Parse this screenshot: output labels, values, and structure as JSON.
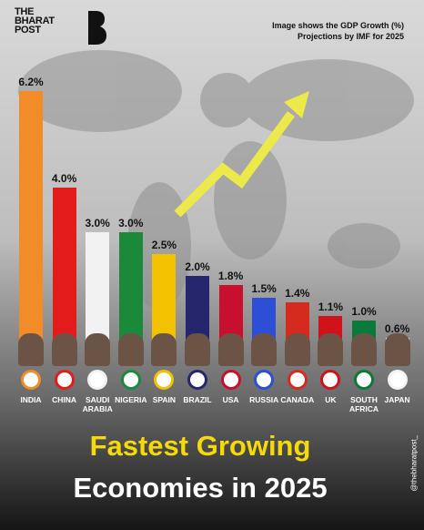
{
  "brand": [
    "THE",
    "BHARAT",
    "POST"
  ],
  "note": [
    "Image shows the GDP Growth (%)",
    "Projections by IMF for 2025"
  ],
  "chart_data": {
    "type": "bar",
    "categories": [
      "INDIA",
      "CHINA",
      "SAUDI ARABIA",
      "NIGERIA",
      "SPAIN",
      "BRAZIL",
      "USA",
      "RUSSIA",
      "CANADA",
      "UK",
      "SOUTH AFRICA",
      "JAPAN"
    ],
    "values": [
      6.2,
      4.0,
      3.0,
      3.0,
      2.5,
      2.0,
      1.8,
      1.5,
      1.4,
      1.1,
      1.0,
      0.6
    ],
    "value_labels": [
      "6.2%",
      "4.0%",
      "3.0%",
      "3.0%",
      "2.5%",
      "2.0%",
      "1.8%",
      "1.5%",
      "1.4%",
      "1.1%",
      "1.0%",
      "0.6%"
    ],
    "colors": [
      "#f28c28",
      "#e41b1b",
      "#f2f2f2",
      "#1a8a3a",
      "#f2c200",
      "#25266b",
      "#c8102e",
      "#2d4fd6",
      "#d52b1e",
      "#d0121b",
      "#0a7a3a",
      "#f4f4f4"
    ]
  },
  "title": [
    "Fastest Growing",
    "Economies in 2025"
  ],
  "handle": "@thebharatpost_"
}
